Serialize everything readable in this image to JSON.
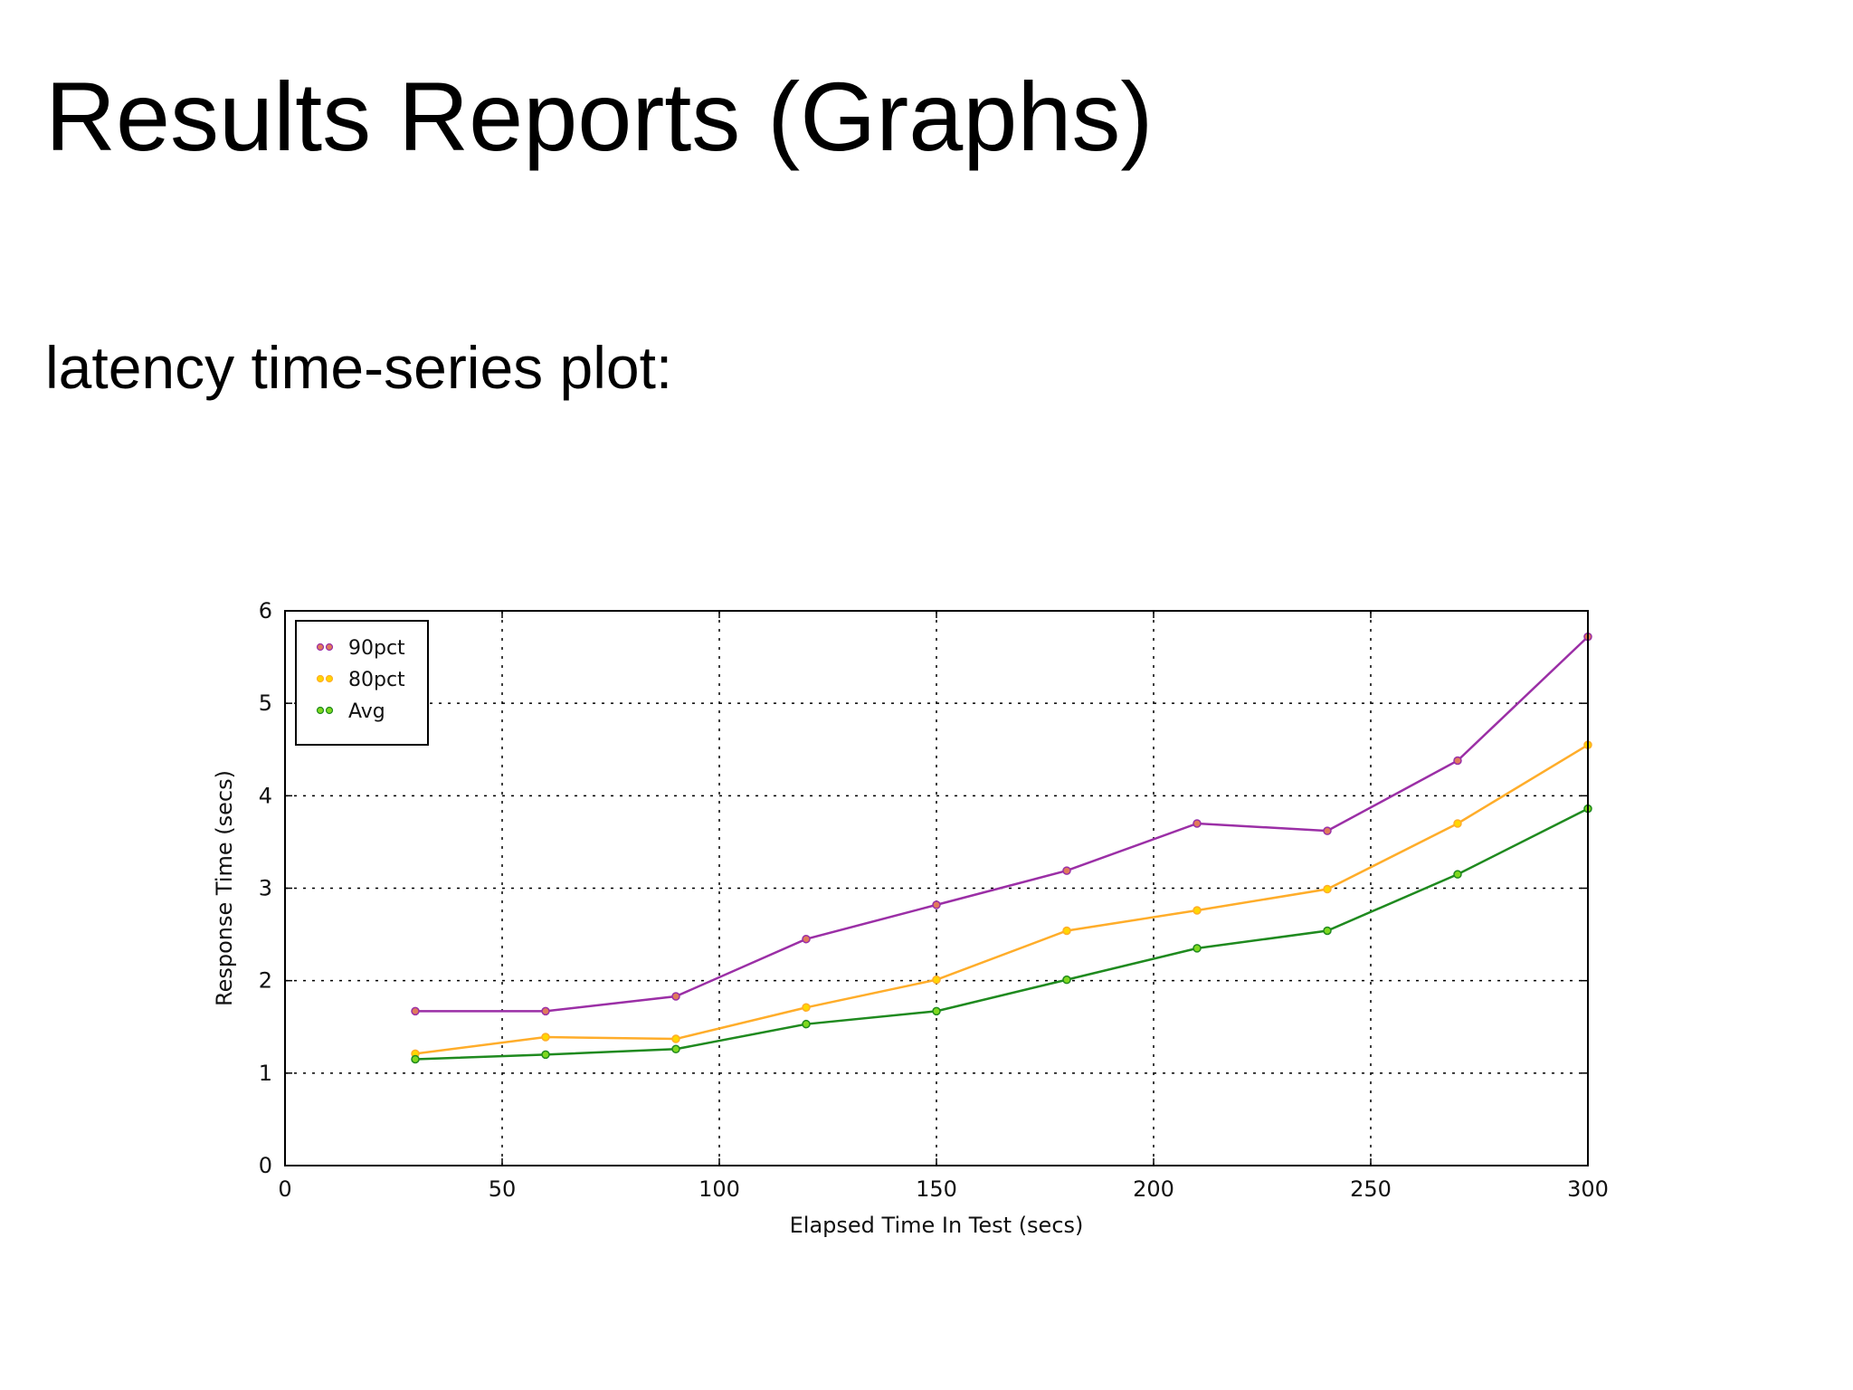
{
  "slide": {
    "title": "Results Reports (Graphs)",
    "subtitle": "latency time-series plot:"
  },
  "chart_data": {
    "type": "line",
    "xlabel": "Elapsed Time In Test (secs)",
    "ylabel": "Response Time (secs)",
    "xlim": [
      0,
      300
    ],
    "ylim": [
      0,
      6
    ],
    "xticks": [
      0,
      50,
      100,
      150,
      200,
      250,
      300
    ],
    "yticks": [
      0,
      1,
      2,
      3,
      4,
      5,
      6
    ],
    "grid": true,
    "legend_position": "top-left",
    "x": [
      30,
      60,
      90,
      120,
      150,
      180,
      210,
      240,
      270,
      300
    ],
    "series": [
      {
        "name": "90pct",
        "line_color": "#9b2fa6",
        "marker_color": "#e07a5a",
        "values": [
          1.67,
          1.67,
          1.83,
          2.45,
          2.82,
          3.19,
          3.7,
          3.62,
          4.38,
          5.72
        ]
      },
      {
        "name": "80pct",
        "line_color": "#ffad2a",
        "marker_color": "#ffd700",
        "values": [
          1.21,
          1.39,
          1.37,
          1.71,
          2.01,
          2.54,
          2.76,
          2.99,
          3.7,
          4.55
        ]
      },
      {
        "name": "Avg",
        "line_color": "#1f8a1f",
        "marker_color": "#7fd81f",
        "values": [
          1.15,
          1.2,
          1.26,
          1.53,
          1.67,
          2.01,
          2.35,
          2.54,
          3.15,
          3.86
        ]
      }
    ]
  }
}
